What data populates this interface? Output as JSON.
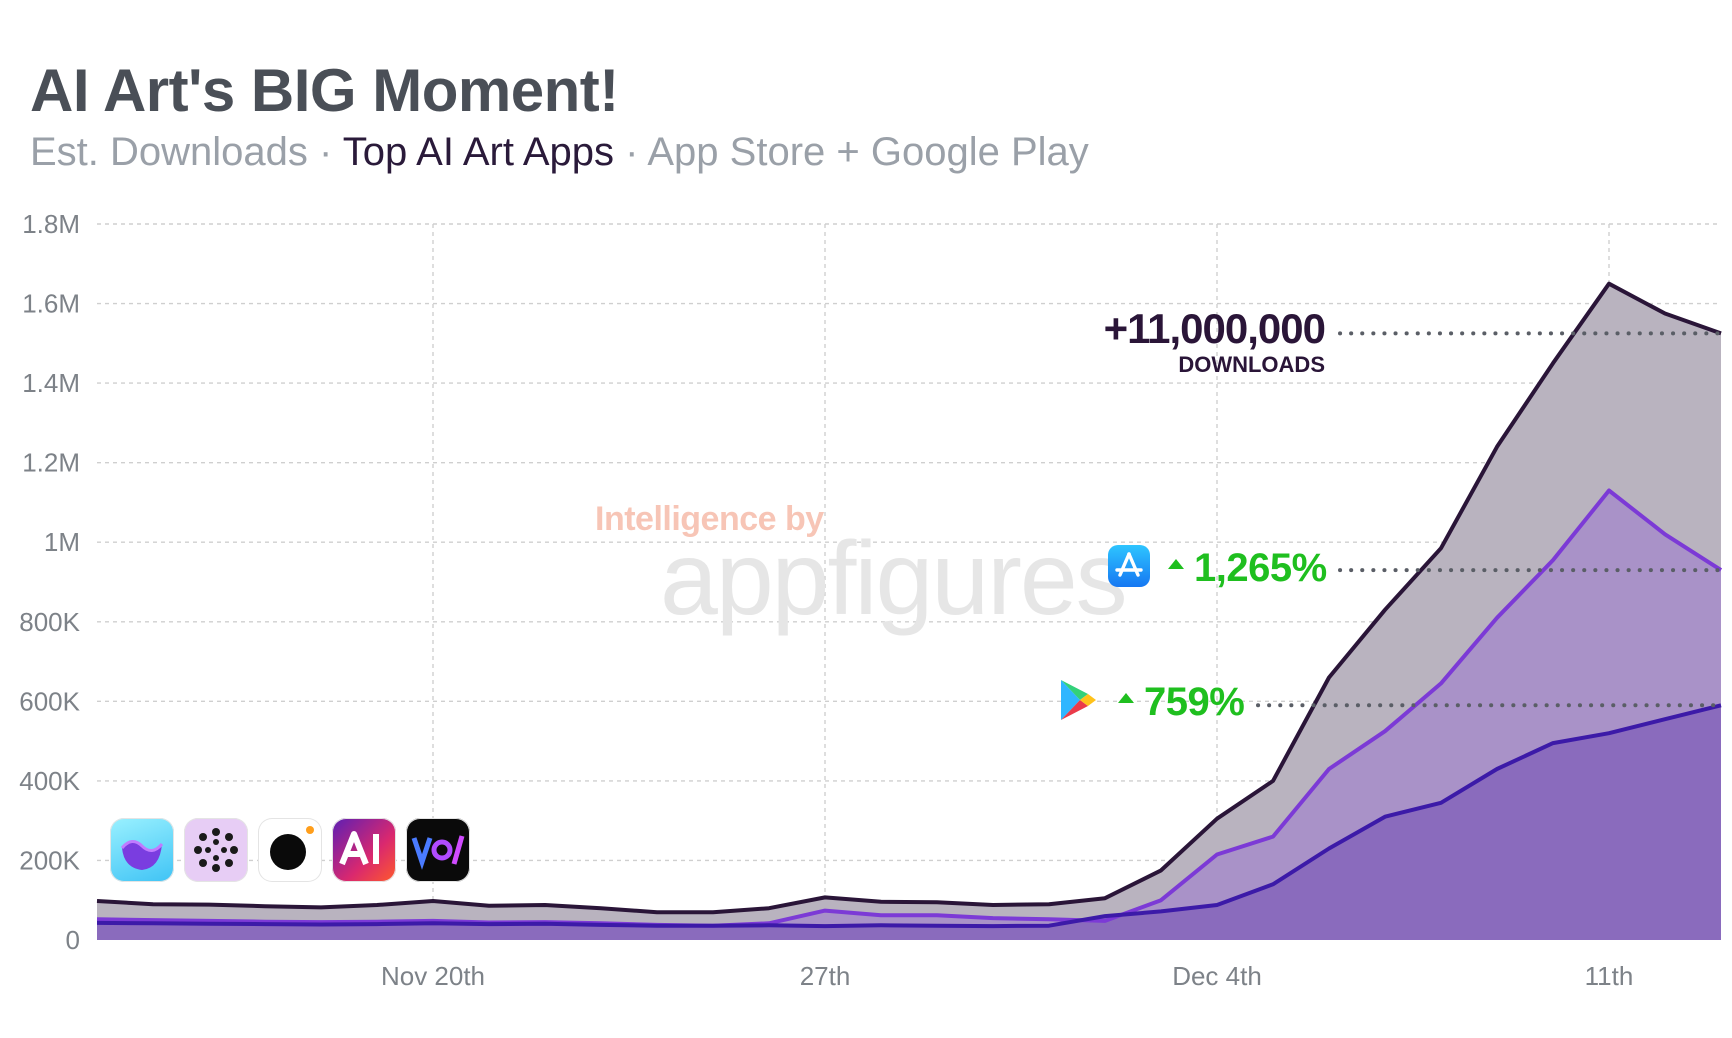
{
  "header": {
    "title": "AI Art's BIG Moment!",
    "subtitle_part1": "Est. Downloads · ",
    "subtitle_em": "Top AI Art Apps",
    "subtitle_part2": " · App Store + Google Play"
  },
  "watermark": {
    "line1": "Intelligence by",
    "line2": "appfigures"
  },
  "annotations": {
    "total_value": "+11,000,000",
    "total_label": "DOWNLOADS",
    "app_store_growth": "1,265%",
    "google_play_growth": "759%"
  },
  "app_icons": [
    "lensa-icon",
    "neural-dots-icon",
    "black-circle-icon",
    "ai-art-icon",
    "voi-icon"
  ],
  "colors": {
    "total_line": "#2a1538",
    "total_fill": "#b9b3bf",
    "ios_line": "#7c3ad6",
    "ios_fill": "#a992c8",
    "android_line": "#3c1aa8",
    "android_fill": "#8a6bbd",
    "growth": "#1fbf1f"
  },
  "chart_data": {
    "type": "area",
    "title": "AI Art's BIG Moment!",
    "xlabel": "",
    "ylabel": "Est. Downloads",
    "ylim": [
      0,
      1800000
    ],
    "y_ticks": [
      0,
      200000,
      400000,
      600000,
      800000,
      1000000,
      1200000,
      1400000,
      1600000,
      1800000
    ],
    "y_tick_labels": [
      "0",
      "200K",
      "400K",
      "600K",
      "800K",
      "1M",
      "1.2M",
      "1.4M",
      "1.6M",
      "1.8M"
    ],
    "x_ticks": [
      6,
      13,
      20,
      27
    ],
    "x_tick_labels": [
      "Nov 20th",
      "27th",
      "Dec 4th",
      "11th"
    ],
    "x": [
      0,
      1,
      2,
      3,
      4,
      5,
      6,
      7,
      8,
      9,
      10,
      11,
      12,
      13,
      14,
      15,
      16,
      17,
      18,
      19,
      20,
      21,
      22,
      23,
      24,
      25,
      26,
      27,
      28,
      29
    ],
    "series": [
      {
        "name": "Total (App Store + Google Play)",
        "values": [
          98000,
          90000,
          89000,
          85000,
          82000,
          88000,
          98000,
          86000,
          88000,
          80000,
          70000,
          70000,
          80000,
          107000,
          96000,
          95000,
          88000,
          90000,
          105000,
          175000,
          305000,
          400000,
          660000,
          830000,
          985000,
          1240000,
          1450000,
          1650000,
          1575000,
          1525000
        ]
      },
      {
        "name": "App Store",
        "values": [
          52000,
          50000,
          48000,
          46000,
          45000,
          46000,
          48000,
          44000,
          45000,
          42000,
          38000,
          36000,
          42000,
          74000,
          62000,
          62000,
          55000,
          52000,
          48000,
          100000,
          215000,
          260000,
          430000,
          525000,
          645000,
          810000,
          955000,
          1130000,
          1020000,
          930000
        ]
      },
      {
        "name": "Google Play",
        "values": [
          43000,
          42000,
          41000,
          40000,
          39000,
          40000,
          42000,
          40000,
          41000,
          38000,
          36000,
          36000,
          37000,
          35000,
          37000,
          36000,
          35000,
          36000,
          60000,
          72000,
          88000,
          140000,
          230000,
          310000,
          345000,
          430000,
          495000,
          520000,
          555000,
          590000
        ]
      }
    ]
  }
}
